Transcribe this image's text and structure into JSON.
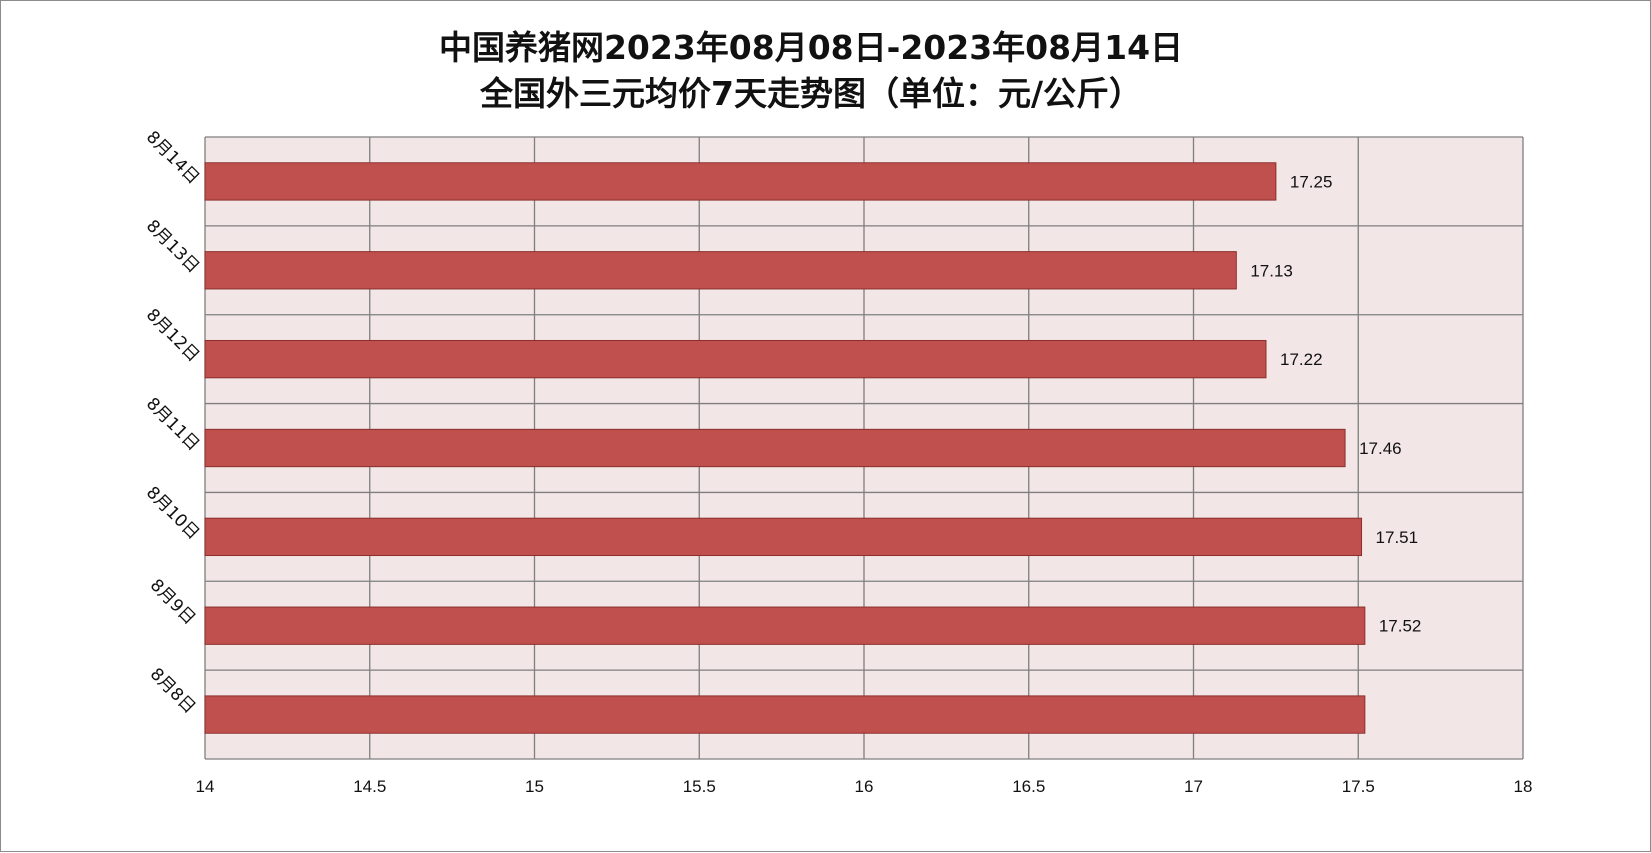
{
  "chart_data": {
    "type": "bar",
    "orientation": "horizontal",
    "title": "中国养猪网2023年08月08日-2023年08月14日",
    "subtitle": "全国外三元均价7天走势图（单位：元/公斤）",
    "categories": [
      "8月8日",
      "8月9日",
      "8月10日",
      "8月11日",
      "8月12日",
      "8月13日",
      "8月14日"
    ],
    "values": [
      17.52,
      17.52,
      17.51,
      17.46,
      17.22,
      17.13,
      17.25
    ],
    "data_labels": [
      "",
      "17.52",
      "17.51",
      "17.46",
      "17.22",
      "17.13",
      "17.25"
    ],
    "xlim": [
      14,
      18
    ],
    "xticks": [
      "14",
      "14.5",
      "15",
      "15.5",
      "16",
      "16.5",
      "17",
      "17.5",
      "18"
    ],
    "grid": true,
    "legend": "none",
    "colors": {
      "bar_fill": "#C0504D",
      "bar_stroke": "#8B2F2D",
      "plot_background": "#F2E6E6",
      "grid": "#7F7F7F"
    }
  }
}
